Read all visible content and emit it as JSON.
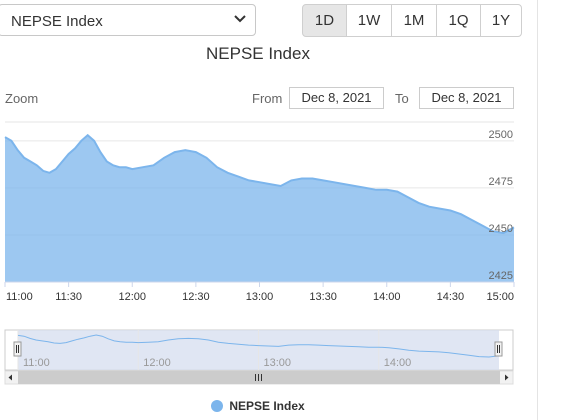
{
  "index_select": {
    "value": "NEPSE Index"
  },
  "range_buttons": [
    {
      "label": "1D",
      "active": true
    },
    {
      "label": "1W",
      "active": false
    },
    {
      "label": "1M",
      "active": false
    },
    {
      "label": "1Q",
      "active": false
    },
    {
      "label": "1Y",
      "active": false
    }
  ],
  "zoom_label": "Zoom",
  "date_range": {
    "from_label": "From",
    "from_value": "Dec 8, 2021",
    "to_label": "To",
    "to_value": "Dec 8, 2021"
  },
  "colors": {
    "series_fill": "#7cb5ec",
    "navigator_mask": "#d5deef",
    "grid": "#e6e6e6"
  },
  "chart_data": {
    "type": "area",
    "title": "NEPSE Index",
    "x_unit": "time of day",
    "x": [
      "11:00",
      "11:03",
      "11:06",
      "11:09",
      "11:12",
      "11:15",
      "11:18",
      "11:21",
      "11:24",
      "11:27",
      "11:30",
      "11:33",
      "11:36",
      "11:39",
      "11:42",
      "11:45",
      "11:48",
      "11:51",
      "11:54",
      "11:57",
      "12:00",
      "12:05",
      "12:10",
      "12:15",
      "12:20",
      "12:25",
      "12:30",
      "12:35",
      "12:40",
      "12:45",
      "12:50",
      "12:55",
      "13:00",
      "13:05",
      "13:10",
      "13:15",
      "13:20",
      "13:25",
      "13:30",
      "13:35",
      "13:40",
      "13:45",
      "13:50",
      "13:55",
      "14:00",
      "14:05",
      "14:10",
      "14:15",
      "14:20",
      "14:25",
      "14:30",
      "14:35",
      "14:40",
      "14:45",
      "14:50",
      "14:55",
      "15:00"
    ],
    "series": [
      {
        "name": "NEPSE Index",
        "values": [
          2502,
          2500,
          2495,
          2491,
          2489,
          2487,
          2484,
          2483,
          2485,
          2489,
          2493,
          2496,
          2500,
          2503,
          2500,
          2494,
          2489,
          2487,
          2486,
          2486,
          2485,
          2486,
          2487,
          2491,
          2494,
          2495,
          2494,
          2491,
          2486,
          2483,
          2481,
          2479,
          2478,
          2477,
          2476,
          2479,
          2480,
          2480,
          2479,
          2478,
          2477,
          2476,
          2475,
          2474,
          2474,
          2473,
          2470,
          2467,
          2465,
          2464,
          2463,
          2461,
          2458,
          2455,
          2452,
          2451,
          2454
        ]
      }
    ],
    "y_ticks": [
      2425,
      2450,
      2475,
      2500
    ],
    "x_ticks": [
      "11:00",
      "11:30",
      "12:00",
      "12:30",
      "13:00",
      "13:30",
      "14:00",
      "14:30",
      "15:00"
    ],
    "ylim": [
      2425,
      2510
    ],
    "grid": true,
    "legend": "bottom-center",
    "navigator": {
      "x_ticks": [
        "11:00",
        "12:00",
        "13:00",
        "14:00"
      ]
    }
  }
}
